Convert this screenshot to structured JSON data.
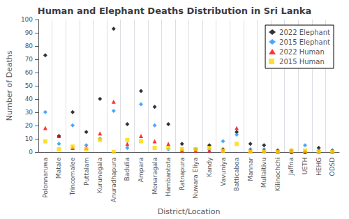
{
  "chart_data": {
    "type": "scatter",
    "title": "Human and Elephant Deaths Distribution in Sri Lanka",
    "x_label": "District/Location",
    "y_label": "Number of Deaths",
    "categories": [
      "Polonnaruwa",
      "Matale",
      "Trincomalee",
      "Puttalam",
      "Kurunegala",
      "Anuradhapura",
      "Badulia",
      "Ampara",
      "Monaragala",
      "Hambantota",
      "Ratnapura",
      "Nuwara Eliya",
      "Kandy",
      "Vavuniya",
      "Batticaboa",
      "Mannar",
      "Mullaitivu",
      "Kilinochchi",
      "Jaffna",
      "UETH",
      "HEHG",
      "ODSD"
    ],
    "series": [
      {
        "name": "2022 Elephant",
        "color": "#000000",
        "marker": "diamond",
        "values": [
          73,
          12,
          30,
          15,
          40,
          93,
          21,
          46,
          34,
          21,
          6,
          2,
          5,
          2,
          15,
          6,
          5,
          1,
          1,
          0,
          3,
          1
        ]
      },
      {
        "name": "2015 Elephant",
        "color": "#1e90ff",
        "marker": "diamond",
        "values": [
          30,
          6,
          20,
          5,
          10,
          31,
          3,
          36,
          20,
          2,
          1,
          2,
          2,
          8,
          13,
          2,
          2,
          0,
          0,
          5,
          1,
          1
        ]
      },
      {
        "name": "2022 Human",
        "color": "#ff0000",
        "marker": "triangle",
        "values": [
          18,
          12,
          3,
          3,
          14,
          38,
          6,
          12,
          8,
          6,
          1,
          1,
          1,
          1,
          18,
          1,
          1,
          0,
          0,
          0,
          0,
          0
        ]
      },
      {
        "name": "2015 Human",
        "color": "#ffd700",
        "marker": "square",
        "values": [
          8,
          2,
          4,
          2,
          9,
          0,
          9,
          8,
          3,
          3,
          2,
          2,
          3,
          1,
          6,
          0,
          0,
          0,
          1,
          1,
          0,
          0
        ]
      }
    ],
    "ylim": [
      0,
      100
    ],
    "yticks": [
      0,
      10,
      20,
      30,
      40,
      50,
      60,
      70,
      80,
      90,
      100
    ],
    "grid": "x",
    "legend": "upper right"
  }
}
